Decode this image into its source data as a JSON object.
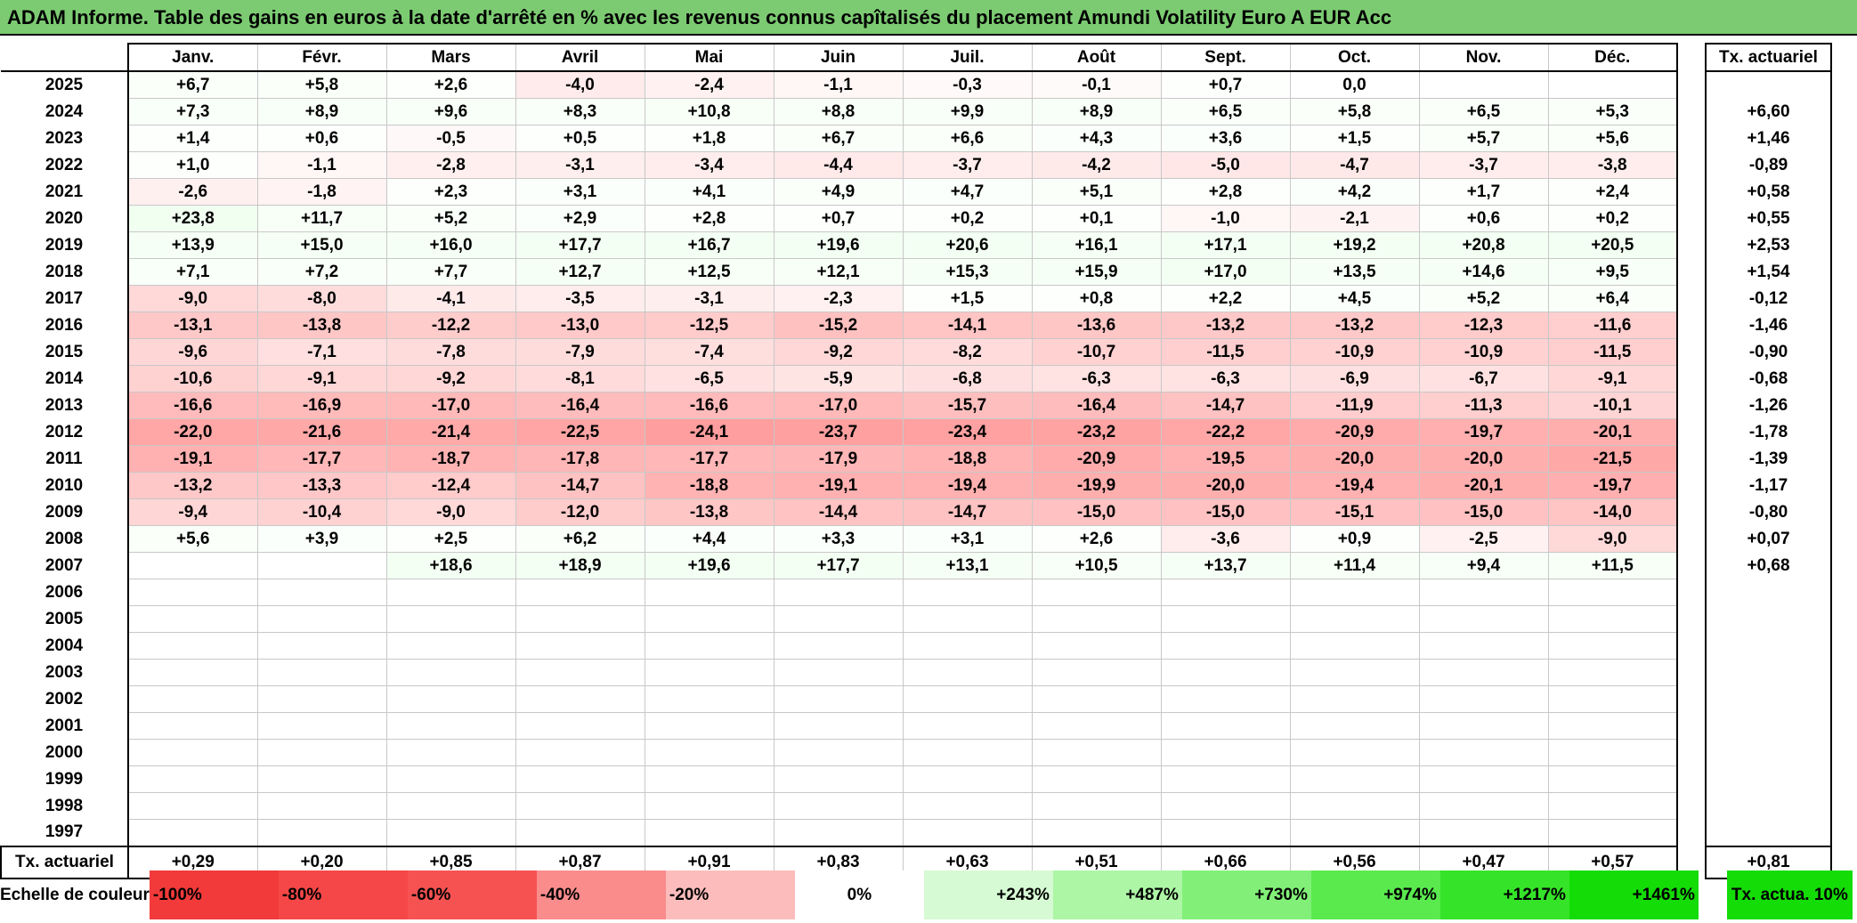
{
  "title": "ADAM Informe. Table des gains en euros à la date d'arrêté en % avec les revenus connus capîtalisés du placement Amundi Volatility Euro A EUR Acc",
  "months": [
    "Janv.",
    "Févr.",
    "Mars",
    "Avril",
    "Mai",
    "Juin",
    "Juil.",
    "Août",
    "Sept.",
    "Oct.",
    "Nov.",
    "Déc."
  ],
  "rate_header": "Tx. actuariel",
  "rows": [
    {
      "year": "2025",
      "values": [
        "+6,7",
        "+5,8",
        "+2,6",
        "-4,0",
        "-2,4",
        "-1,1",
        "-0,3",
        "-0,1",
        "+0,7",
        "0,0",
        "",
        ""
      ],
      "rate": ""
    },
    {
      "year": "2024",
      "values": [
        "+7,3",
        "+8,9",
        "+9,6",
        "+8,3",
        "+10,8",
        "+8,8",
        "+9,9",
        "+8,9",
        "+6,5",
        "+5,8",
        "+6,5",
        "+5,3"
      ],
      "rate": "+6,60"
    },
    {
      "year": "2023",
      "values": [
        "+1,4",
        "+0,6",
        "-0,5",
        "+0,5",
        "+1,8",
        "+6,7",
        "+6,6",
        "+4,3",
        "+3,6",
        "+1,5",
        "+5,7",
        "+5,6"
      ],
      "rate": "+1,46"
    },
    {
      "year": "2022",
      "values": [
        "+1,0",
        "-1,1",
        "-2,8",
        "-3,1",
        "-3,4",
        "-4,4",
        "-3,7",
        "-4,2",
        "-5,0",
        "-4,7",
        "-3,7",
        "-3,8"
      ],
      "rate": "-0,89"
    },
    {
      "year": "2021",
      "values": [
        "-2,6",
        "-1,8",
        "+2,3",
        "+3,1",
        "+4,1",
        "+4,9",
        "+4,7",
        "+5,1",
        "+2,8",
        "+4,2",
        "+1,7",
        "+2,4"
      ],
      "rate": "+0,58"
    },
    {
      "year": "2020",
      "values": [
        "+23,8",
        "+11,7",
        "+5,2",
        "+2,9",
        "+2,8",
        "+0,7",
        "+0,2",
        "+0,1",
        "-1,0",
        "-2,1",
        "+0,6",
        "+0,2"
      ],
      "rate": "+0,55"
    },
    {
      "year": "2019",
      "values": [
        "+13,9",
        "+15,0",
        "+16,0",
        "+17,7",
        "+16,7",
        "+19,6",
        "+20,6",
        "+16,1",
        "+17,1",
        "+19,2",
        "+20,8",
        "+20,5"
      ],
      "rate": "+2,53"
    },
    {
      "year": "2018",
      "values": [
        "+7,1",
        "+7,2",
        "+7,7",
        "+12,7",
        "+12,5",
        "+12,1",
        "+15,3",
        "+15,9",
        "+17,0",
        "+13,5",
        "+14,6",
        "+9,5"
      ],
      "rate": "+1,54"
    },
    {
      "year": "2017",
      "values": [
        "-9,0",
        "-8,0",
        "-4,1",
        "-3,5",
        "-3,1",
        "-2,3",
        "+1,5",
        "+0,8",
        "+2,2",
        "+4,5",
        "+5,2",
        "+6,4"
      ],
      "rate": "-0,12"
    },
    {
      "year": "2016",
      "values": [
        "-13,1",
        "-13,8",
        "-12,2",
        "-13,0",
        "-12,5",
        "-15,2",
        "-14,1",
        "-13,6",
        "-13,2",
        "-13,2",
        "-12,3",
        "-11,6"
      ],
      "rate": "-1,46"
    },
    {
      "year": "2015",
      "values": [
        "-9,6",
        "-7,1",
        "-7,8",
        "-7,9",
        "-7,4",
        "-9,2",
        "-8,2",
        "-10,7",
        "-11,5",
        "-10,9",
        "-10,9",
        "-11,5"
      ],
      "rate": "-0,90"
    },
    {
      "year": "2014",
      "values": [
        "-10,6",
        "-9,1",
        "-9,2",
        "-8,1",
        "-6,5",
        "-5,9",
        "-6,8",
        "-6,3",
        "-6,3",
        "-6,9",
        "-6,7",
        "-9,1"
      ],
      "rate": "-0,68"
    },
    {
      "year": "2013",
      "values": [
        "-16,6",
        "-16,9",
        "-17,0",
        "-16,4",
        "-16,6",
        "-17,0",
        "-15,7",
        "-16,4",
        "-14,7",
        "-11,9",
        "-11,3",
        "-10,1"
      ],
      "rate": "-1,26"
    },
    {
      "year": "2012",
      "values": [
        "-22,0",
        "-21,6",
        "-21,4",
        "-22,5",
        "-24,1",
        "-23,7",
        "-23,4",
        "-23,2",
        "-22,2",
        "-20,9",
        "-19,7",
        "-20,1"
      ],
      "rate": "-1,78"
    },
    {
      "year": "2011",
      "values": [
        "-19,1",
        "-17,7",
        "-18,7",
        "-17,8",
        "-17,7",
        "-17,9",
        "-18,8",
        "-20,9",
        "-19,5",
        "-20,0",
        "-20,0",
        "-21,5"
      ],
      "rate": "-1,39"
    },
    {
      "year": "2010",
      "values": [
        "-13,2",
        "-13,3",
        "-12,4",
        "-14,7",
        "-18,8",
        "-19,1",
        "-19,4",
        "-19,9",
        "-20,0",
        "-19,4",
        "-20,1",
        "-19,7"
      ],
      "rate": "-1,17"
    },
    {
      "year": "2009",
      "values": [
        "-9,4",
        "-10,4",
        "-9,0",
        "-12,0",
        "-13,8",
        "-14,4",
        "-14,7",
        "-15,0",
        "-15,0",
        "-15,1",
        "-15,0",
        "-14,0"
      ],
      "rate": "-0,80"
    },
    {
      "year": "2008",
      "values": [
        "+5,6",
        "+3,9",
        "+2,5",
        "+6,2",
        "+4,4",
        "+3,3",
        "+3,1",
        "+2,6",
        "-3,6",
        "+0,9",
        "-2,5",
        "-9,0"
      ],
      "rate": "+0,07"
    },
    {
      "year": "2007",
      "values": [
        "",
        "",
        "+18,6",
        "+18,9",
        "+19,6",
        "+17,7",
        "+13,1",
        "+10,5",
        "+13,7",
        "+11,4",
        "+9,4",
        "+11,5"
      ],
      "rate": "+0,68"
    },
    {
      "year": "2006",
      "values": [
        "",
        "",
        "",
        "",
        "",
        "",
        "",
        "",
        "",
        "",
        "",
        ""
      ],
      "rate": ""
    },
    {
      "year": "2005",
      "values": [
        "",
        "",
        "",
        "",
        "",
        "",
        "",
        "",
        "",
        "",
        "",
        ""
      ],
      "rate": ""
    },
    {
      "year": "2004",
      "values": [
        "",
        "",
        "",
        "",
        "",
        "",
        "",
        "",
        "",
        "",
        "",
        ""
      ],
      "rate": ""
    },
    {
      "year": "2003",
      "values": [
        "",
        "",
        "",
        "",
        "",
        "",
        "",
        "",
        "",
        "",
        "",
        ""
      ],
      "rate": ""
    },
    {
      "year": "2002",
      "values": [
        "",
        "",
        "",
        "",
        "",
        "",
        "",
        "",
        "",
        "",
        "",
        ""
      ],
      "rate": ""
    },
    {
      "year": "2001",
      "values": [
        "",
        "",
        "",
        "",
        "",
        "",
        "",
        "",
        "",
        "",
        "",
        ""
      ],
      "rate": ""
    },
    {
      "year": "2000",
      "values": [
        "",
        "",
        "",
        "",
        "",
        "",
        "",
        "",
        "",
        "",
        "",
        ""
      ],
      "rate": ""
    },
    {
      "year": "1999",
      "values": [
        "",
        "",
        "",
        "",
        "",
        "",
        "",
        "",
        "",
        "",
        "",
        ""
      ],
      "rate": ""
    },
    {
      "year": "1998",
      "values": [
        "",
        "",
        "",
        "",
        "",
        "",
        "",
        "",
        "",
        "",
        "",
        ""
      ],
      "rate": ""
    },
    {
      "year": "1997",
      "values": [
        "",
        "",
        "",
        "",
        "",
        "",
        "",
        "",
        "",
        "",
        "",
        ""
      ],
      "rate": ""
    }
  ],
  "bottom_row": {
    "label": "Tx. actuariel",
    "values": [
      "+0,29",
      "+0,20",
      "+0,85",
      "+0,87",
      "+0,91",
      "+0,83",
      "+0,63",
      "+0,51",
      "+0,66",
      "+0,56",
      "+0,47",
      "+0,57"
    ],
    "rate": "+0,81"
  },
  "scale": {
    "label": "Echelle de couleur",
    "items": [
      {
        "text": "-100%",
        "color": "#f23a3a",
        "kind": "neg"
      },
      {
        "text": "-80%",
        "color": "#f54747",
        "kind": "neg"
      },
      {
        "text": "-60%",
        "color": "#f75252",
        "kind": "neg"
      },
      {
        "text": "-40%",
        "color": "#fa8c8c",
        "kind": "neg"
      },
      {
        "text": "-20%",
        "color": "#fdbcbc",
        "kind": "neg"
      },
      {
        "text": "0%",
        "color": "#ffffff",
        "kind": "zero"
      },
      {
        "text": "+243%",
        "color": "#d6fad3",
        "kind": "pos"
      },
      {
        "text": "+487%",
        "color": "#acf6a5",
        "kind": "pos"
      },
      {
        "text": "+730%",
        "color": "#82f078",
        "kind": "pos"
      },
      {
        "text": "+974%",
        "color": "#5aea4e",
        "kind": "pos"
      },
      {
        "text": "+1217%",
        "color": "#35e428",
        "kind": "pos"
      },
      {
        "text": "+1461%",
        "color": "#14dc06",
        "kind": "pos"
      }
    ],
    "target_label": "Tx. actua. 10%",
    "target_color": "#14dc06"
  },
  "chart_data": {
    "type": "heatmap",
    "title": "ADAM Informe. Table des gains en euros à la date d'arrêté en % avec les revenus connus capîtalisés du placement Amundi Volatility Euro A EUR Acc",
    "x_categories": [
      "Janv.",
      "Févr.",
      "Mars",
      "Avril",
      "Mai",
      "Juin",
      "Juil.",
      "Août",
      "Sept.",
      "Oct.",
      "Nov.",
      "Déc."
    ],
    "y_categories": [
      "2025",
      "2024",
      "2023",
      "2022",
      "2021",
      "2020",
      "2019",
      "2018",
      "2017",
      "2016",
      "2015",
      "2014",
      "2013",
      "2012",
      "2011",
      "2010",
      "2009",
      "2008",
      "2007"
    ],
    "values": [
      [
        6.7,
        5.8,
        2.6,
        -4.0,
        -2.4,
        -1.1,
        -0.3,
        -0.1,
        0.7,
        0.0,
        null,
        null
      ],
      [
        7.3,
        8.9,
        9.6,
        8.3,
        10.8,
        8.8,
        9.9,
        8.9,
        6.5,
        5.8,
        6.5,
        5.3
      ],
      [
        1.4,
        0.6,
        -0.5,
        0.5,
        1.8,
        6.7,
        6.6,
        4.3,
        3.6,
        1.5,
        5.7,
        5.6
      ],
      [
        1.0,
        -1.1,
        -2.8,
        -3.1,
        -3.4,
        -4.4,
        -3.7,
        -4.2,
        -5.0,
        -4.7,
        -3.7,
        -3.8
      ],
      [
        -2.6,
        -1.8,
        2.3,
        3.1,
        4.1,
        4.9,
        4.7,
        5.1,
        2.8,
        4.2,
        1.7,
        2.4
      ],
      [
        23.8,
        11.7,
        5.2,
        2.9,
        2.8,
        0.7,
        0.2,
        0.1,
        -1.0,
        -2.1,
        0.6,
        0.2
      ],
      [
        13.9,
        15.0,
        16.0,
        17.7,
        16.7,
        19.6,
        20.6,
        16.1,
        17.1,
        19.2,
        20.8,
        20.5
      ],
      [
        7.1,
        7.2,
        7.7,
        12.7,
        12.5,
        12.1,
        15.3,
        15.9,
        17.0,
        13.5,
        14.6,
        9.5
      ],
      [
        -9.0,
        -8.0,
        -4.1,
        -3.5,
        -3.1,
        -2.3,
        1.5,
        0.8,
        2.2,
        4.5,
        5.2,
        6.4
      ],
      [
        -13.1,
        -13.8,
        -12.2,
        -13.0,
        -12.5,
        -15.2,
        -14.1,
        -13.6,
        -13.2,
        -13.2,
        -12.3,
        -11.6
      ],
      [
        -9.6,
        -7.1,
        -7.8,
        -7.9,
        -7.4,
        -9.2,
        -8.2,
        -10.7,
        -11.5,
        -10.9,
        -10.9,
        -11.5
      ],
      [
        -10.6,
        -9.1,
        -9.2,
        -8.1,
        -6.5,
        -5.9,
        -6.8,
        -6.3,
        -6.3,
        -6.9,
        -6.7,
        -9.1
      ],
      [
        -16.6,
        -16.9,
        -17.0,
        -16.4,
        -16.6,
        -17.0,
        -15.7,
        -16.4,
        -14.7,
        -11.9,
        -11.3,
        -10.1
      ],
      [
        -22.0,
        -21.6,
        -21.4,
        -22.5,
        -24.1,
        -23.7,
        -23.4,
        -23.2,
        -22.2,
        -20.9,
        -19.7,
        -20.1
      ],
      [
        -19.1,
        -17.7,
        -18.7,
        -17.8,
        -17.7,
        -17.9,
        -18.8,
        -20.9,
        -19.5,
        -20.0,
        -20.0,
        -21.5
      ],
      [
        -13.2,
        -13.3,
        -12.4,
        -14.7,
        -18.8,
        -19.1,
        -19.4,
        -19.9,
        -20.0,
        -19.4,
        -20.1,
        -19.7
      ],
      [
        -9.4,
        -10.4,
        -9.0,
        -12.0,
        -13.8,
        -14.4,
        -14.7,
        -15.0,
        -15.0,
        -15.1,
        -15.0,
        -14.0
      ],
      [
        5.6,
        3.9,
        2.5,
        6.2,
        4.4,
        3.3,
        3.1,
        2.6,
        -3.6,
        0.9,
        -2.5,
        -9.0
      ],
      [
        null,
        null,
        18.6,
        18.9,
        19.6,
        17.7,
        13.1,
        10.5,
        13.7,
        11.4,
        9.4,
        11.5
      ]
    ],
    "rates_by_year": [
      null,
      6.6,
      1.46,
      -0.89,
      0.58,
      0.55,
      2.53,
      1.54,
      -0.12,
      -1.46,
      -0.9,
      -0.68,
      -1.26,
      -1.78,
      -1.39,
      -1.17,
      -0.8,
      0.07,
      0.68
    ],
    "rates_by_month": [
      0.29,
      0.2,
      0.85,
      0.87,
      0.91,
      0.83,
      0.63,
      0.51,
      0.66,
      0.56,
      0.47,
      0.57
    ],
    "overall_rate": 0.81
  }
}
